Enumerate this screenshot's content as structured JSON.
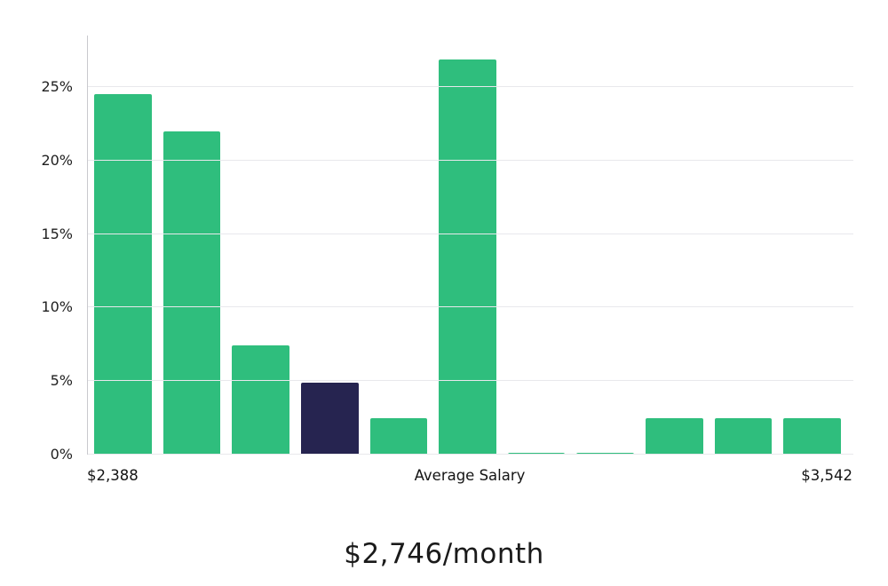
{
  "chart_data": {
    "type": "bar",
    "title": "$2,746/month",
    "values": [
      24.5,
      22.0,
      7.4,
      4.9,
      2.5,
      26.9,
      0.15,
      0.15,
      2.5,
      2.5,
      2.5
    ],
    "highlight_index": 3,
    "colors": {
      "bar": "#2fbe7d",
      "highlight": "#262450"
    },
    "yticks": [
      0,
      5,
      10,
      15,
      20,
      25
    ],
    "ytick_labels": [
      "0%",
      "5%",
      "10%",
      "15%",
      "20%",
      "25%"
    ],
    "ylim": [
      0,
      28.5
    ],
    "grid": true,
    "legend": "none",
    "x_axis_labels": {
      "min": "$2,388",
      "mid": "Average Salary",
      "max": "$3,542"
    }
  }
}
